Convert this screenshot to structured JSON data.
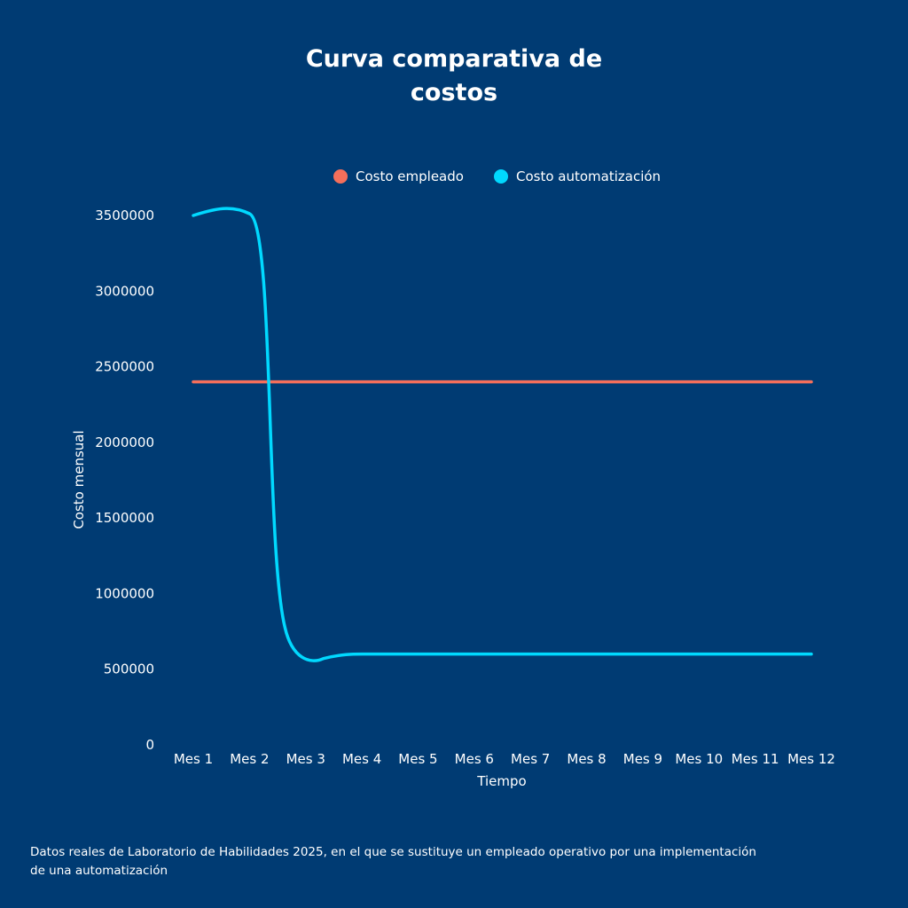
{
  "chart_data": {
    "type": "line",
    "title_lines": [
      "Curva comparativa de",
      "costos"
    ],
    "xlabel": "Tiempo",
    "ylabel": "Costo mensual",
    "categories": [
      "Mes 1",
      "Mes 2",
      "Mes 3",
      "Mes 4",
      "Mes 5",
      "Mes 6",
      "Mes 7",
      "Mes 8",
      "Mes 9",
      "Mes 10",
      "Mes 11",
      "Mes 12"
    ],
    "ylim": [
      0,
      3500000
    ],
    "yticks": [
      "0",
      "500000",
      "1000000",
      "1500000",
      "2000000",
      "2500000",
      "3000000",
      "3500000"
    ],
    "ytick_values": [
      0,
      500000,
      1000000,
      1500000,
      2000000,
      2500000,
      3000000,
      3500000
    ],
    "grid": false,
    "legend_position": "top-center",
    "series": [
      {
        "name": "Costo empleado",
        "color": "#f46f5b",
        "values": [
          2400000,
          2400000,
          2400000,
          2400000,
          2400000,
          2400000,
          2400000,
          2400000,
          2400000,
          2400000,
          2400000,
          2400000
        ]
      },
      {
        "name": "Costo automatización",
        "color": "#00d9ff",
        "values": [
          3500000,
          3500000,
          600000,
          600000,
          600000,
          600000,
          600000,
          600000,
          600000,
          600000,
          600000,
          600000
        ]
      }
    ]
  },
  "footnote_lines": [
    "Datos reales de Laboratorio de Habilidades 2025, en el que se sustituye un empleado operativo por una implementación",
    "de una automatización"
  ]
}
